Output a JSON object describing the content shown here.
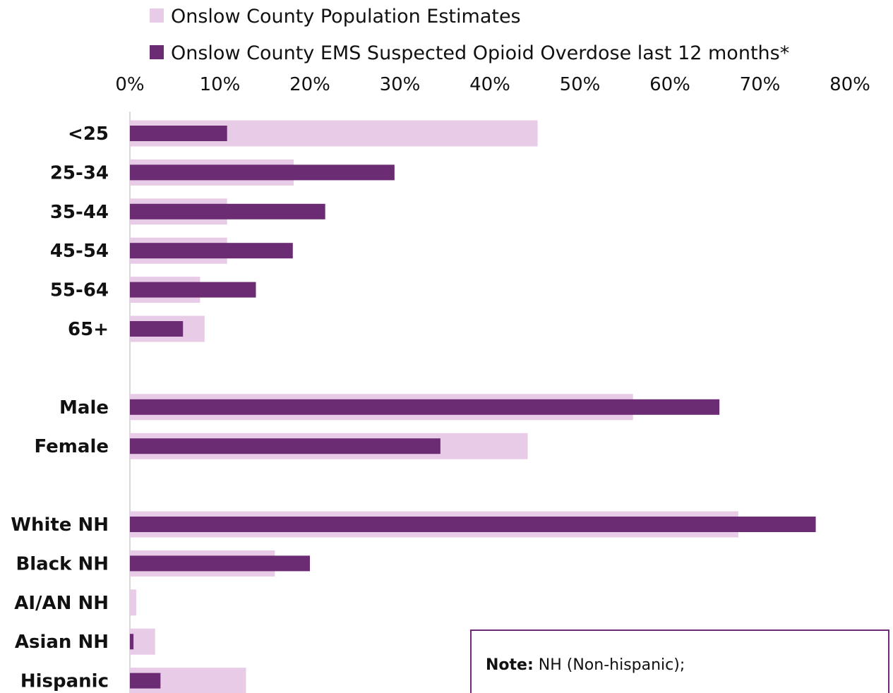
{
  "colors": {
    "population": "#e8cbe6",
    "ems": "#6b2c73",
    "axis": "#d9d9d9",
    "note_border": "#6b2c73"
  },
  "legend": {
    "population": "Onslow County Population Estimates",
    "ems": "Onslow County EMS Suspected Opioid Overdose last 12 months*"
  },
  "note": {
    "label": "Note:",
    "text": " NH (Non-hispanic);"
  },
  "chart_data": {
    "type": "bar",
    "orientation": "horizontal",
    "x_axis_position": "top",
    "xlim": [
      0,
      80
    ],
    "xticks": [
      "0%",
      "10%",
      "20%",
      "30%",
      "40%",
      "50%",
      "60%",
      "70%",
      "80%"
    ],
    "grid": false,
    "legend_position": "top",
    "categories": [
      "<25",
      "25-34",
      "35-44",
      "45-54",
      "55-64",
      "65+",
      "Male",
      "Female",
      "White NH",
      "Black NH",
      "AI/AN NH",
      "Asian NH",
      "Hispanic"
    ],
    "groups": [
      {
        "categories": [
          "<25",
          "25-34",
          "35-44",
          "45-54",
          "55-64",
          "65+"
        ]
      },
      {
        "categories": [
          "Male",
          "Female"
        ]
      },
      {
        "categories": [
          "White NH",
          "Black NH",
          "AI/AN NH",
          "Asian NH",
          "Hispanic"
        ]
      }
    ],
    "series": [
      {
        "name": "Onslow County Population Estimates",
        "values": [
          45.3,
          18.2,
          10.8,
          10.8,
          7.8,
          8.3,
          55.9,
          44.2,
          67.6,
          16.1,
          0.7,
          2.8,
          12.9
        ]
      },
      {
        "name": "Onslow County EMS Suspected Opioid Overdose last 12 months*",
        "values": [
          10.8,
          29.4,
          21.7,
          18.1,
          14.0,
          5.9,
          65.5,
          34.5,
          76.2,
          20.0,
          0.0,
          0.4,
          3.4
        ]
      }
    ]
  }
}
